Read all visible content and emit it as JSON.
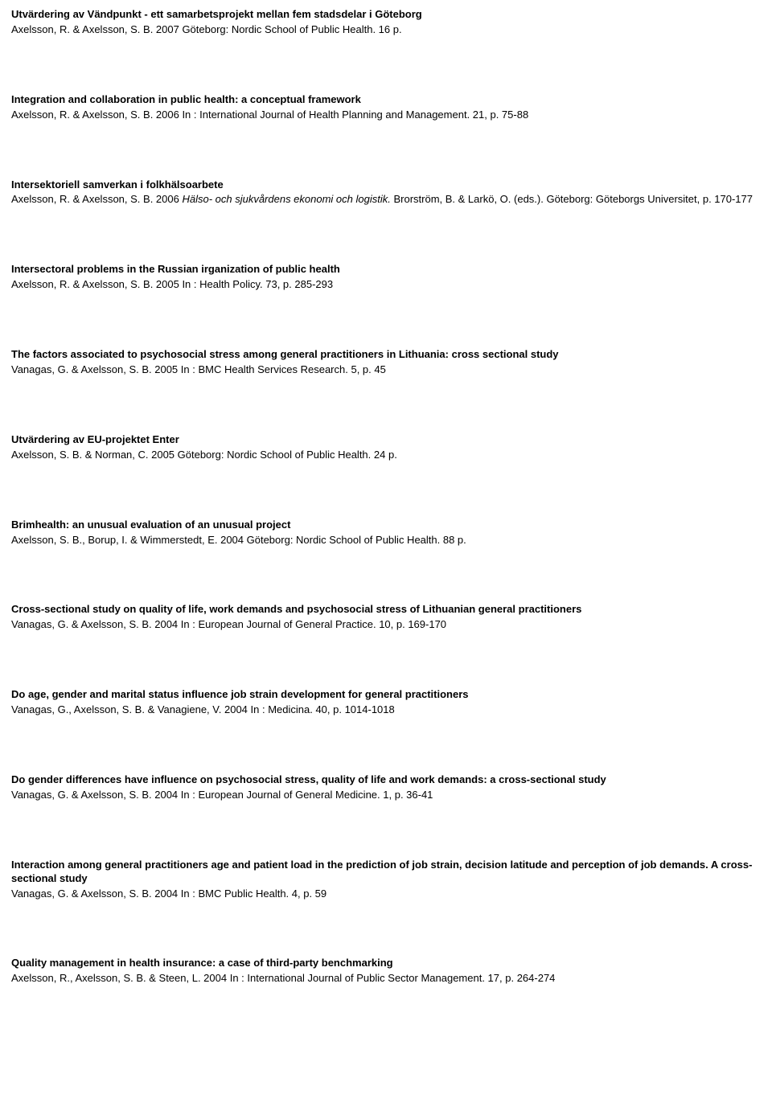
{
  "publications": [
    {
      "title": "Utvärdering av Vändpunkt - ett samarbetsprojekt mellan fem stadsdelar i Göteborg",
      "details": "Axelsson, R. & Axelsson, S. B. 2007 Göteborg: Nordic School of Public Health. 16 p."
    },
    {
      "title": "Integration and collaboration in public health: a conceptual framework",
      "details": "Axelsson, R. & Axelsson, S. B. 2006 In : International Journal of Health Planning and Management. 21, p. 75-88"
    },
    {
      "title": "Intersektoriell samverkan i folkhälsoarbete",
      "details_pre": "Axelsson, R. & Axelsson, S. B. 2006 ",
      "details_italic": "Hälso- och sjukvårdens ekonomi och logistik.",
      "details_post": " Brorström, B. & Larkö, O. (eds.). Göteborg: Göteborgs Universitet, p. 170-177"
    },
    {
      "title": "Intersectoral problems in the Russian irganization of public health",
      "details": "Axelsson, R. & Axelsson, S. B. 2005 In : Health Policy. 73, p. 285-293"
    },
    {
      "title": "The factors associated to psychosocial stress among general practitioners in Lithuania: cross sectional study",
      "details": "Vanagas, G. & Axelsson, S. B. 2005 In : BMC Health Services Research. 5, p. 45"
    },
    {
      "title": "Utvärdering av EU-projektet Enter",
      "details": "Axelsson, S. B. & Norman, C. 2005 Göteborg: Nordic School of Public Health. 24 p."
    },
    {
      "title": "Brimhealth: an unusual evaluation of an unusual project",
      "details": "Axelsson, S. B., Borup, I. & Wimmerstedt, E. 2004 Göteborg: Nordic School of Public Health. 88 p."
    },
    {
      "title": "Cross-sectional study on quality of life, work demands and psychosocial stress of Lithuanian general practitioners",
      "details": "Vanagas, G. & Axelsson, S. B. 2004 In : European Journal of General Practice. 10, p. 169-170"
    },
    {
      "title": "Do age, gender and marital status influence job strain development for general practitioners",
      "details": "Vanagas, G., Axelsson, S. B. & Vanagiene, V. 2004 In : Medicina. 40, p. 1014-1018"
    },
    {
      "title": "Do gender differences have influence on psychosocial stress, quality of life and work demands: a cross-sectional study",
      "details": "Vanagas, G. & Axelsson, S. B. 2004 In : European Journal of General Medicine. 1, p. 36-41"
    },
    {
      "title": "Interaction among general practitioners age and patient load in the prediction of job strain, decision latitude and perception of job demands. A cross-sectional study",
      "details": "Vanagas, G. & Axelsson, S. B. 2004 In : BMC Public Health. 4, p. 59"
    },
    {
      "title": "Quality management in health insurance: a case of third-party benchmarking",
      "details": "Axelsson, R., Axelsson, S. B. & Steen, L. 2004 In : International Journal of Public Sector Management. 17, p. 264-274"
    }
  ]
}
